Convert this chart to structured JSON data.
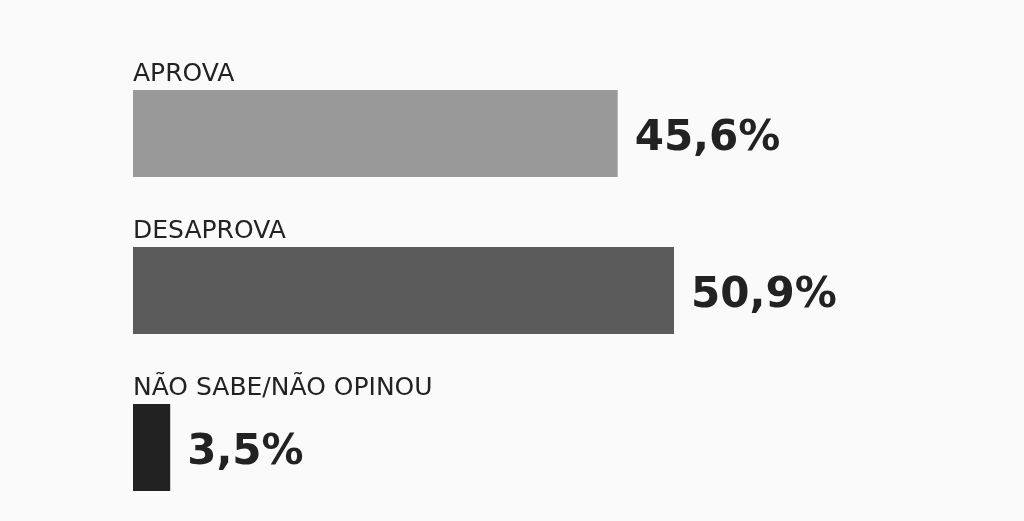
{
  "chart_data": {
    "type": "bar",
    "orientation": "horizontal",
    "categories": [
      "APROVA",
      "DESAPROVA",
      "NÃO SABE/NÃO OPINOU"
    ],
    "values": [
      45.6,
      50.9,
      3.5
    ],
    "colors": [
      "#999999",
      "#5b5b5b",
      "#222222"
    ],
    "value_labels": [
      "45,6%",
      "50,9%",
      "3,5%"
    ]
  }
}
